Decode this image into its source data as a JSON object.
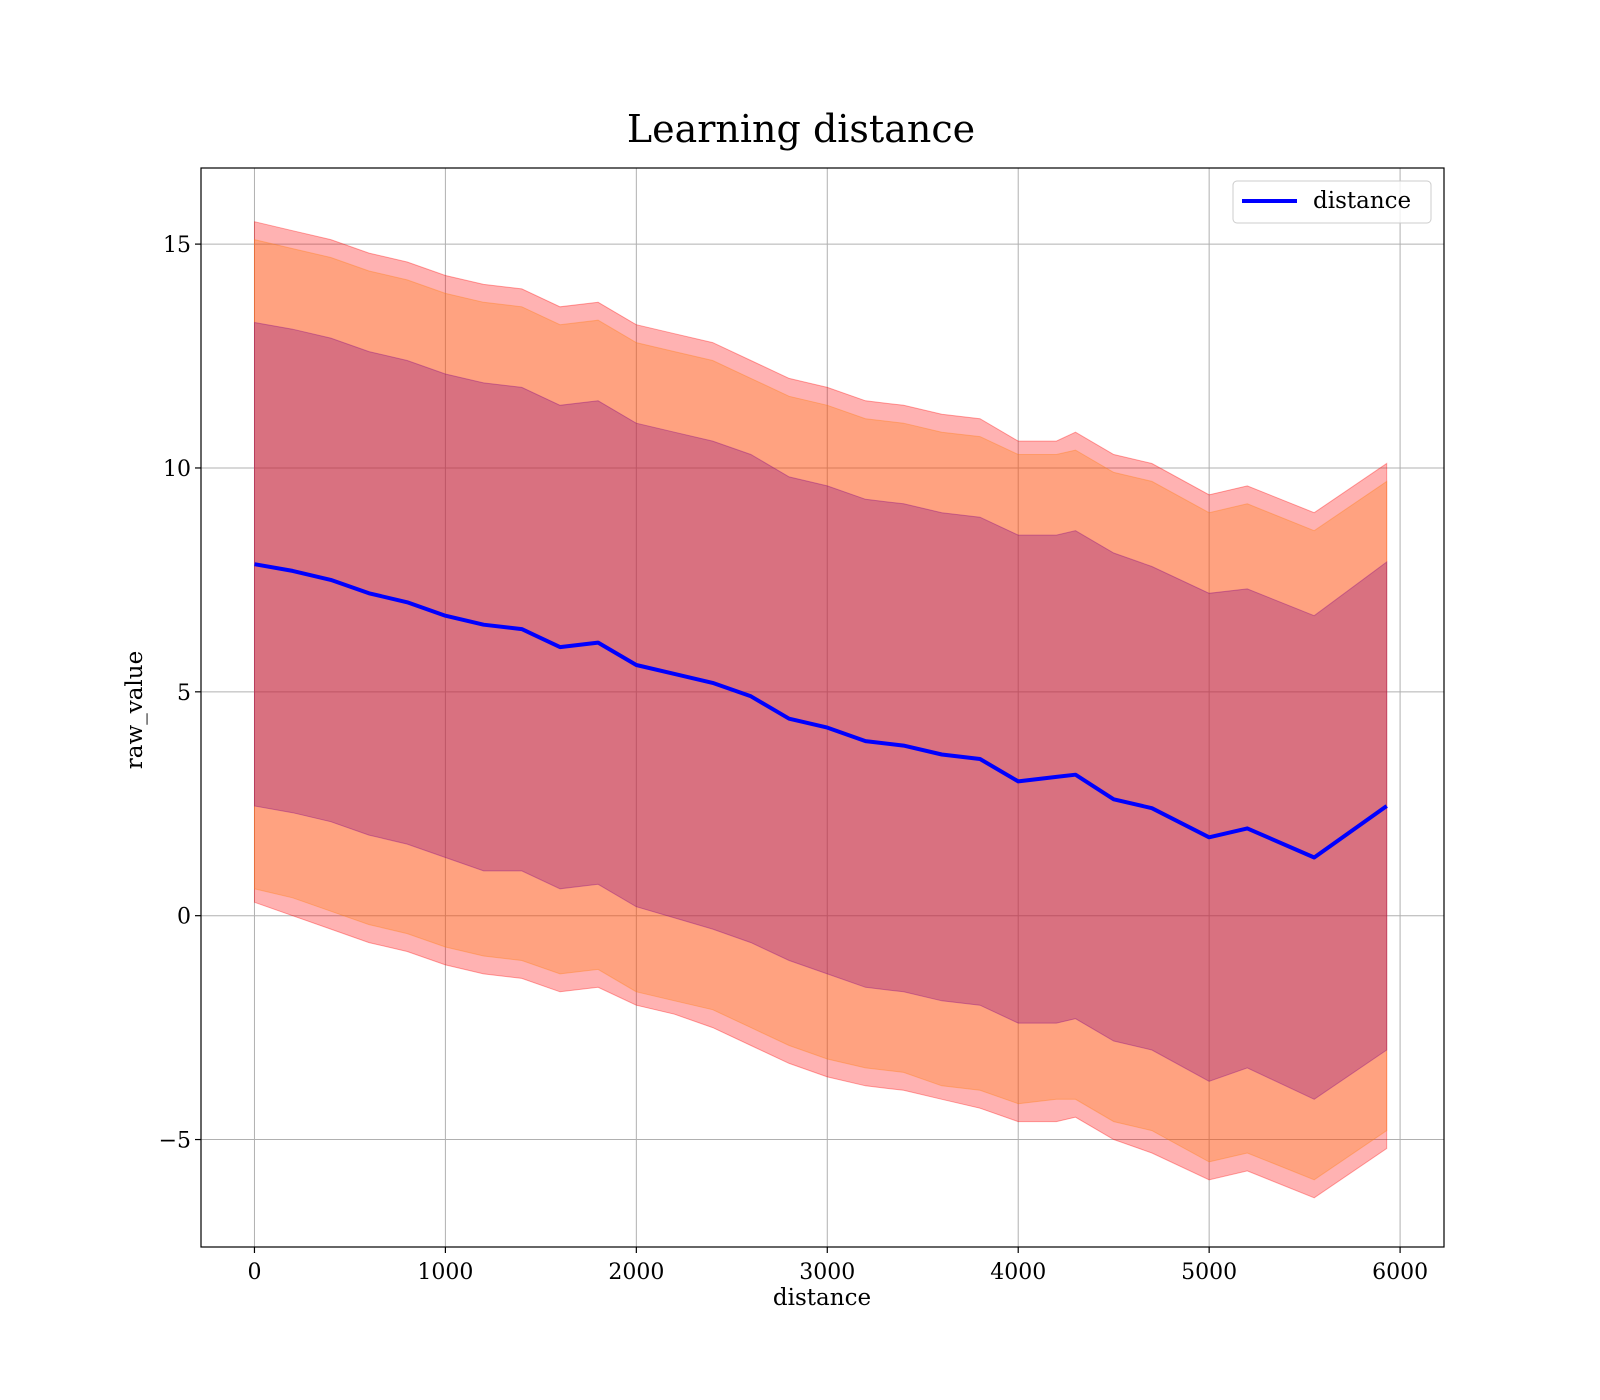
{
  "chart_data": {
    "type": "line",
    "title": "Learning distance",
    "xlabel": "distance",
    "ylabel": "raw_value",
    "xlim": [
      -280,
      6230
    ],
    "ylim": [
      -7.4,
      16.7
    ],
    "xticks": [
      0,
      1000,
      2000,
      3000,
      4000,
      5000,
      6000
    ],
    "xtick_labels": [
      "0",
      "1000",
      "2000",
      "3000",
      "4000",
      "5000",
      "6000"
    ],
    "yticks": [
      -5,
      0,
      5,
      10,
      15
    ],
    "ytick_labels": [
      "−5",
      "0",
      "5",
      "10",
      "15"
    ],
    "grid": true,
    "legend": {
      "placement": "upper right",
      "entries": [
        "distance"
      ]
    },
    "colors": {
      "line": "#0000ff",
      "band_outer": "#ff0000",
      "band_middle": "#ff7f0e",
      "band_inner": "#800080",
      "grid": "#b0b0b0"
    },
    "x": [
      0,
      200,
      400,
      600,
      800,
      1000,
      1200,
      1400,
      1600,
      1800,
      2000,
      2200,
      2400,
      2600,
      2800,
      3000,
      3200,
      3400,
      3600,
      3800,
      4000,
      4200,
      4300,
      4500,
      4700,
      5000,
      5200,
      5550,
      5930
    ],
    "series": [
      {
        "name": "distance",
        "values": [
          7.85,
          7.7,
          7.5,
          7.2,
          7.0,
          6.7,
          6.5,
          6.4,
          6.0,
          6.1,
          5.6,
          5.4,
          5.2,
          4.9,
          4.4,
          4.2,
          3.9,
          3.8,
          3.6,
          3.5,
          3.0,
          3.1,
          3.15,
          2.6,
          2.4,
          1.75,
          1.95,
          1.3,
          2.45
        ]
      }
    ],
    "bands": [
      {
        "lower": [
          0.3,
          0.0,
          -0.3,
          -0.6,
          -0.8,
          -1.1,
          -1.3,
          -1.4,
          -1.7,
          -1.6,
          -2.0,
          -2.2,
          -2.5,
          -2.9,
          -3.3,
          -3.6,
          -3.8,
          -3.9,
          -4.1,
          -4.3,
          -4.6,
          -4.6,
          -4.5,
          -5.0,
          -5.3,
          -5.9,
          -5.7,
          -6.3,
          -5.2
        ],
        "upper": [
          15.5,
          15.3,
          15.1,
          14.8,
          14.6,
          14.3,
          14.1,
          14.0,
          13.6,
          13.7,
          13.2,
          13.0,
          12.8,
          12.4,
          12.0,
          11.8,
          11.5,
          11.4,
          11.2,
          11.1,
          10.6,
          10.6,
          10.8,
          10.3,
          10.1,
          9.4,
          9.6,
          9.0,
          10.1
        ]
      },
      {
        "lower": [
          0.6,
          0.4,
          0.1,
          -0.2,
          -0.4,
          -0.7,
          -0.9,
          -1.0,
          -1.3,
          -1.2,
          -1.7,
          -1.9,
          -2.1,
          -2.5,
          -2.9,
          -3.2,
          -3.4,
          -3.5,
          -3.8,
          -3.9,
          -4.2,
          -4.1,
          -4.1,
          -4.6,
          -4.8,
          -5.5,
          -5.3,
          -5.9,
          -4.8
        ],
        "upper": [
          15.1,
          14.9,
          14.7,
          14.4,
          14.2,
          13.9,
          13.7,
          13.6,
          13.2,
          13.3,
          12.8,
          12.6,
          12.4,
          12.0,
          11.6,
          11.4,
          11.1,
          11.0,
          10.8,
          10.7,
          10.3,
          10.3,
          10.4,
          9.9,
          9.7,
          9.0,
          9.2,
          8.6,
          9.7
        ]
      },
      {
        "lower": [
          2.45,
          2.3,
          2.1,
          1.8,
          1.6,
          1.3,
          1.0,
          1.0,
          0.6,
          0.7,
          0.2,
          -0.05,
          -0.3,
          -0.6,
          -1.0,
          -1.3,
          -1.6,
          -1.7,
          -1.9,
          -2.0,
          -2.4,
          -2.4,
          -2.3,
          -2.8,
          -3.0,
          -3.7,
          -3.4,
          -4.1,
          -3.0
        ],
        "upper": [
          13.25,
          13.1,
          12.9,
          12.6,
          12.4,
          12.1,
          11.9,
          11.8,
          11.4,
          11.5,
          11.0,
          10.8,
          10.6,
          10.3,
          9.8,
          9.6,
          9.3,
          9.2,
          9.0,
          8.9,
          8.5,
          8.5,
          8.6,
          8.1,
          7.8,
          7.2,
          7.3,
          6.7,
          7.9
        ]
      }
    ]
  }
}
